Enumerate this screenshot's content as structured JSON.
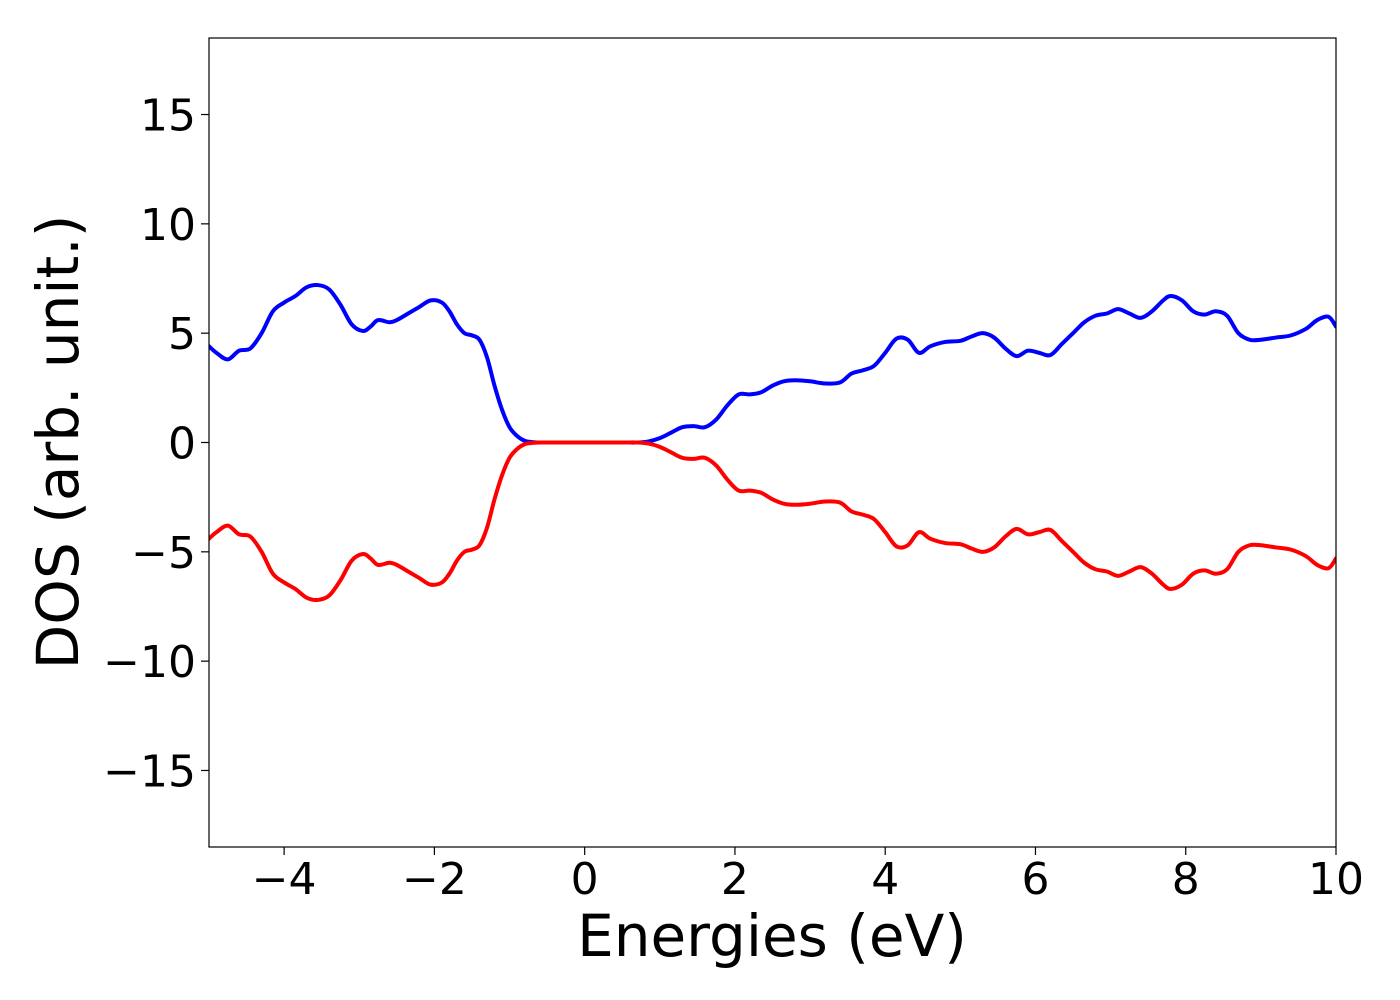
{
  "chart_data": {
    "type": "line",
    "title": "",
    "xlabel": "Energies (eV)",
    "ylabel": "DOS (arb. unit.)",
    "xlim": [
      -5,
      10
    ],
    "ylim": [
      -18.5,
      18.5
    ],
    "xticks": [
      -4,
      -2,
      0,
      2,
      4,
      6,
      8,
      10
    ],
    "xtick_labels": [
      "−4",
      "−2",
      "0",
      "2",
      "4",
      "6",
      "8",
      "10"
    ],
    "yticks": [
      -15,
      -10,
      -5,
      0,
      5,
      10,
      15
    ],
    "ytick_labels": [
      "−15",
      "−10",
      "−5",
      "0",
      "5",
      "10",
      "15"
    ],
    "grid": false,
    "legend": "none",
    "series": [
      {
        "color": "#0000ff",
        "x": [
          -5.0,
          -4.9,
          -4.75,
          -4.6,
          -4.45,
          -4.3,
          -4.15,
          -4.0,
          -3.85,
          -3.7,
          -3.55,
          -3.4,
          -3.25,
          -3.1,
          -2.95,
          -2.85,
          -2.75,
          -2.6,
          -2.5,
          -2.35,
          -2.2,
          -2.05,
          -1.9,
          -1.8,
          -1.7,
          -1.6,
          -1.5,
          -1.4,
          -1.3,
          -1.2,
          -1.1,
          -1.0,
          -0.9,
          -0.8,
          -0.7,
          -0.6,
          -0.5,
          0.0,
          0.5,
          0.7,
          0.85,
          1.0,
          1.15,
          1.3,
          1.45,
          1.6,
          1.75,
          1.9,
          2.05,
          2.2,
          2.35,
          2.5,
          2.65,
          2.8,
          3.0,
          3.2,
          3.4,
          3.55,
          3.7,
          3.85,
          4.0,
          4.15,
          4.3,
          4.45,
          4.6,
          4.8,
          5.0,
          5.15,
          5.3,
          5.45,
          5.6,
          5.75,
          5.9,
          6.05,
          6.2,
          6.35,
          6.5,
          6.65,
          6.8,
          6.95,
          7.1,
          7.25,
          7.4,
          7.55,
          7.7,
          7.8,
          7.95,
          8.1,
          8.25,
          8.4,
          8.55,
          8.7,
          8.85,
          9.0,
          9.2,
          9.4,
          9.6,
          9.75,
          9.9,
          10.0
        ],
        "y": [
          4.4,
          4.1,
          3.8,
          4.2,
          4.3,
          5.0,
          6.0,
          6.4,
          6.7,
          7.1,
          7.2,
          7.0,
          6.3,
          5.4,
          5.1,
          5.3,
          5.6,
          5.5,
          5.6,
          5.9,
          6.2,
          6.5,
          6.4,
          6.0,
          5.4,
          5.0,
          4.9,
          4.7,
          3.9,
          2.6,
          1.5,
          0.7,
          0.3,
          0.08,
          0.02,
          0.0,
          0.0,
          0.0,
          0.0,
          0.0,
          0.05,
          0.2,
          0.45,
          0.7,
          0.75,
          0.7,
          1.05,
          1.7,
          2.2,
          2.2,
          2.3,
          2.6,
          2.8,
          2.85,
          2.8,
          2.7,
          2.75,
          3.15,
          3.3,
          3.5,
          4.1,
          4.75,
          4.7,
          4.1,
          4.4,
          4.6,
          4.65,
          4.85,
          5.0,
          4.8,
          4.3,
          3.95,
          4.2,
          4.1,
          4.0,
          4.5,
          5.0,
          5.5,
          5.8,
          5.9,
          6.1,
          5.9,
          5.7,
          6.0,
          6.5,
          6.7,
          6.5,
          6.0,
          5.85,
          6.0,
          5.8,
          5.0,
          4.7,
          4.7,
          4.8,
          4.9,
          5.2,
          5.6,
          5.75,
          5.3
        ]
      },
      {
        "color": "#ff0000",
        "x": [
          -5.0,
          -4.9,
          -4.75,
          -4.6,
          -4.45,
          -4.3,
          -4.15,
          -4.0,
          -3.85,
          -3.7,
          -3.55,
          -3.4,
          -3.25,
          -3.1,
          -2.95,
          -2.85,
          -2.75,
          -2.6,
          -2.5,
          -2.35,
          -2.2,
          -2.05,
          -1.9,
          -1.8,
          -1.7,
          -1.6,
          -1.5,
          -1.4,
          -1.3,
          -1.2,
          -1.1,
          -1.0,
          -0.9,
          -0.8,
          -0.7,
          -0.6,
          -0.5,
          0.0,
          0.5,
          0.7,
          0.85,
          1.0,
          1.15,
          1.3,
          1.45,
          1.6,
          1.75,
          1.9,
          2.05,
          2.2,
          2.35,
          2.5,
          2.65,
          2.8,
          3.0,
          3.2,
          3.4,
          3.55,
          3.7,
          3.85,
          4.0,
          4.15,
          4.3,
          4.45,
          4.6,
          4.8,
          5.0,
          5.15,
          5.3,
          5.45,
          5.6,
          5.75,
          5.9,
          6.05,
          6.2,
          6.35,
          6.5,
          6.65,
          6.8,
          6.95,
          7.1,
          7.25,
          7.4,
          7.55,
          7.7,
          7.8,
          7.95,
          8.1,
          8.25,
          8.4,
          8.55,
          8.7,
          8.85,
          9.0,
          9.2,
          9.4,
          9.6,
          9.75,
          9.9,
          10.0
        ],
        "y": [
          -4.4,
          -4.1,
          -3.8,
          -4.2,
          -4.3,
          -5.0,
          -6.0,
          -6.4,
          -6.7,
          -7.1,
          -7.2,
          -7.0,
          -6.3,
          -5.4,
          -5.1,
          -5.3,
          -5.6,
          -5.5,
          -5.6,
          -5.9,
          -6.2,
          -6.5,
          -6.4,
          -6.0,
          -5.4,
          -5.0,
          -4.9,
          -4.7,
          -3.9,
          -2.6,
          -1.5,
          -0.7,
          -0.3,
          -0.08,
          -0.02,
          0.0,
          0.0,
          0.0,
          0.0,
          0.0,
          -0.05,
          -0.2,
          -0.45,
          -0.7,
          -0.75,
          -0.7,
          -1.05,
          -1.7,
          -2.2,
          -2.2,
          -2.3,
          -2.6,
          -2.8,
          -2.85,
          -2.8,
          -2.7,
          -2.75,
          -3.15,
          -3.3,
          -3.5,
          -4.1,
          -4.75,
          -4.7,
          -4.1,
          -4.4,
          -4.6,
          -4.65,
          -4.85,
          -5.0,
          -4.8,
          -4.3,
          -3.95,
          -4.2,
          -4.1,
          -4.0,
          -4.5,
          -5.0,
          -5.5,
          -5.8,
          -5.9,
          -6.1,
          -5.9,
          -5.7,
          -6.0,
          -6.5,
          -6.7,
          -6.5,
          -6.0,
          -5.85,
          -6.0,
          -5.8,
          -5.0,
          -4.7,
          -4.7,
          -4.8,
          -4.9,
          -5.2,
          -5.6,
          -5.75,
          -5.3
        ]
      }
    ]
  }
}
